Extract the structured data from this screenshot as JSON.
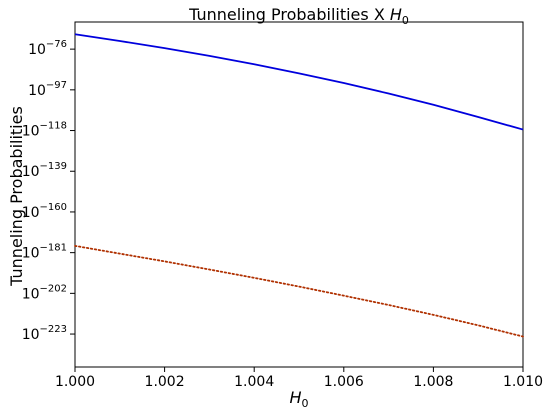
{
  "chart_data": {
    "type": "line",
    "title": "Tunneling Probabilities X H0",
    "xlabel": "H0",
    "ylabel": "Tunneling Probabilities",
    "y_scale": "log",
    "xlim": [
      1.0,
      1.01
    ],
    "ylim_exponent": [
      -240,
      -62
    ],
    "x_ticks": [
      1.0,
      1.002,
      1.004,
      1.006,
      1.008,
      1.01
    ],
    "x_tick_labels": [
      "1.000",
      "1.002",
      "1.004",
      "1.006",
      "1.008",
      "1.010"
    ],
    "y_tick_exponents": [
      -76,
      -97,
      -118,
      -139,
      -160,
      -181,
      -202,
      -223
    ],
    "y_tick_labels": [
      "-76",
      "-97",
      "-118",
      "-139",
      "-160",
      "-181",
      "-202",
      "-223"
    ],
    "grid": false,
    "series": [
      {
        "color": "#0000dd",
        "style": "solid",
        "x": [
          1.0,
          1.001,
          1.002,
          1.003,
          1.004,
          1.005,
          1.006,
          1.007,
          1.008,
          1.009,
          1.01
        ],
        "log10_y": [
          -68.3,
          -71.8,
          -75.5,
          -79.5,
          -83.8,
          -88.5,
          -93.5,
          -98.9,
          -104.7,
          -111.0,
          -117.5
        ]
      },
      {
        "color": "#b03000",
        "style": "dotted",
        "x": [
          1.0,
          1.001,
          1.002,
          1.003,
          1.004,
          1.005,
          1.006,
          1.007,
          1.008,
          1.009,
          1.01
        ],
        "log10_y": [
          -177.5,
          -181.5,
          -185.5,
          -189.7,
          -194.0,
          -198.5,
          -203.2,
          -208.0,
          -213.1,
          -218.5,
          -224.3
        ]
      }
    ]
  }
}
